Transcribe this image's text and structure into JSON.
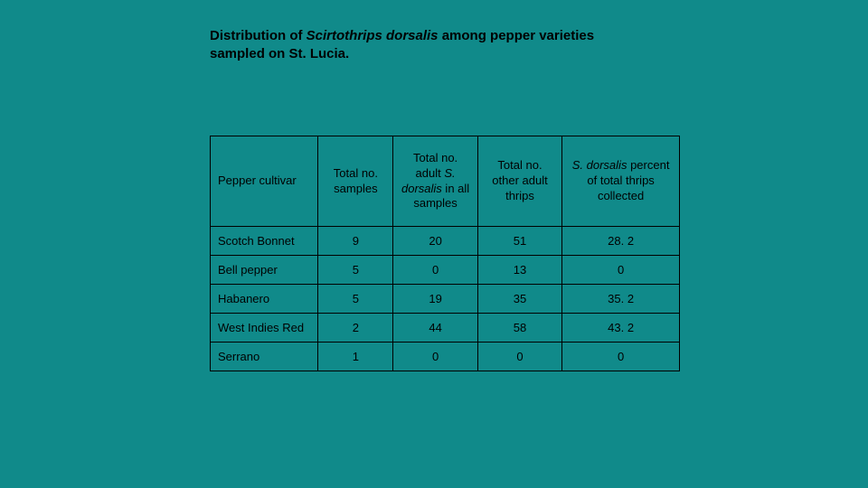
{
  "title": {
    "prefix": "Distribution of ",
    "italic": "Scirtothrips dorsalis",
    "suffix": " among pepper varieties sampled on St. Lucia."
  },
  "table": {
    "type": "table",
    "background_color": "#108a8a",
    "border_color": "#000000",
    "font_family": "Arial",
    "header_fontsize": 13,
    "body_fontsize": 13,
    "column_widths_pct": [
      23,
      16,
      18,
      18,
      25
    ],
    "columns": {
      "c0": "Pepper cultivar",
      "c1": "Total no. samples",
      "c2_pre": "Total no. adult ",
      "c2_it": "S. dorsalis",
      "c2_post": " in all samples",
      "c3": "Total no. other adult thrips",
      "c4_it": "S. dorsalis",
      "c4_post": " percent of total thrips collected"
    },
    "rows": [
      {
        "cultivar": "Scotch Bonnet",
        "samples": "9",
        "sd": "20",
        "other": "51",
        "pct": "28. 2"
      },
      {
        "cultivar": "Bell pepper",
        "samples": "5",
        "sd": "0",
        "other": "13",
        "pct": "0"
      },
      {
        "cultivar": "Habanero",
        "samples": "5",
        "sd": "19",
        "other": "35",
        "pct": "35. 2"
      },
      {
        "cultivar": "West Indies Red",
        "samples": "2",
        "sd": "44",
        "other": "58",
        "pct": "43. 2"
      },
      {
        "cultivar": "Serrano",
        "samples": "1",
        "sd": "0",
        "other": "0",
        "pct": "0"
      }
    ]
  }
}
